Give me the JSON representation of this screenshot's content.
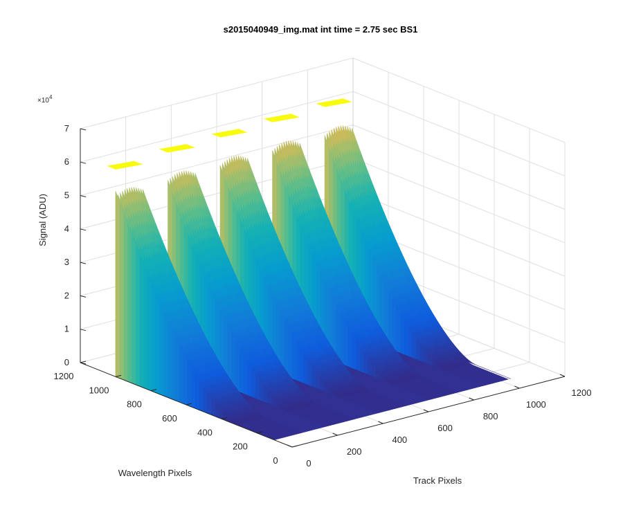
{
  "chart_data": {
    "type": "surface",
    "title": "s2015040949_img.mat int time = 2.75 sec   BS1",
    "xlabel": "Track Pixels",
    "ylabel": "Wavelength Pixels",
    "zlabel": "Signal (ADU)",
    "xlim": [
      0,
      1200
    ],
    "ylim": [
      0,
      1200
    ],
    "zlim": [
      0,
      70000
    ],
    "x_ticks": [
      "0",
      "200",
      "400",
      "600",
      "800",
      "1000",
      "1200"
    ],
    "y_ticks": [
      "0",
      "200",
      "400",
      "600",
      "800",
      "1000",
      "1200"
    ],
    "z_ticks": [
      "0",
      "1",
      "2",
      "3",
      "4",
      "5",
      "6",
      "7"
    ],
    "z_exponent": "×10",
    "z_exponent_power": "4",
    "colormap": "parula",
    "grid": true,
    "view": "3d",
    "series": [
      {
        "x_start": 0,
        "x_end": 120,
        "peak": 62000
      },
      {
        "x_start": 230,
        "x_end": 350,
        "peak": 63000
      },
      {
        "x_start": 460,
        "x_end": 580,
        "peak": 63500
      },
      {
        "x_start": 690,
        "x_end": 810,
        "peak": 64000
      },
      {
        "x_start": 920,
        "x_end": 1040,
        "peak": 64500
      }
    ],
    "y_plateau_end": 1050,
    "y_falloff_end": 300
  }
}
